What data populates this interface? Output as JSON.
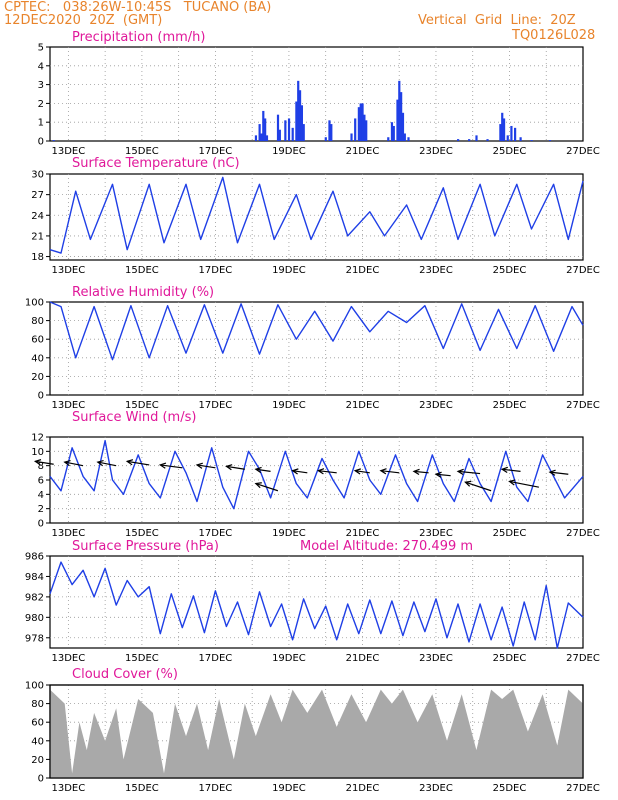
{
  "header": {
    "station": "CPTEC:   038:26W-10:45S   TUCANO (BA)",
    "datetime": "12DEC2020  20Z  (GMT)",
    "grid_note": "Vertical  Grid  Line:  20Z",
    "code": "TQ0126L028"
  },
  "colors": {
    "line": "#1f3fe6",
    "bar": "#1f3fe6",
    "cloud": "#a9a9a9",
    "title": "#e0189a",
    "header": "#e8842c"
  },
  "chart_data": [
    {
      "id": "precip",
      "type": "bar",
      "title": "Precipitation  (mm/h)",
      "ylim": [
        0,
        5
      ],
      "yticks": [
        0,
        1,
        2,
        3,
        4,
        5
      ],
      "x_date_labels": [
        "13DEC",
        "15DEC",
        "17DEC",
        "19DEC",
        "21DEC",
        "23DEC",
        "25DEC",
        "27DEC"
      ],
      "bars": [
        [
          0.1,
          0.05
        ],
        [
          5.6,
          0.3
        ],
        [
          5.7,
          0.9
        ],
        [
          5.75,
          0.4
        ],
        [
          5.8,
          1.6
        ],
        [
          5.85,
          1.2
        ],
        [
          5.9,
          0.3
        ],
        [
          6.2,
          1.4
        ],
        [
          6.25,
          0.6
        ],
        [
          6.4,
          1.1
        ],
        [
          6.5,
          1.2
        ],
        [
          6.6,
          0.7
        ],
        [
          6.7,
          2.1
        ],
        [
          6.75,
          3.2
        ],
        [
          6.8,
          2.7
        ],
        [
          6.85,
          1.9
        ],
        [
          6.9,
          0.9
        ],
        [
          7.5,
          0.2
        ],
        [
          7.6,
          1.1
        ],
        [
          7.65,
          0.9
        ],
        [
          8.2,
          0.4
        ],
        [
          8.3,
          1.2
        ],
        [
          8.4,
          1.8
        ],
        [
          8.45,
          2.0
        ],
        [
          8.5,
          2.0
        ],
        [
          8.55,
          1.4
        ],
        [
          8.6,
          1.1
        ],
        [
          9.2,
          0.2
        ],
        [
          9.3,
          1.0
        ],
        [
          9.35,
          0.8
        ],
        [
          9.45,
          2.2
        ],
        [
          9.5,
          3.2
        ],
        [
          9.55,
          2.6
        ],
        [
          9.6,
          1.5
        ],
        [
          9.65,
          0.4
        ],
        [
          9.75,
          0.2
        ],
        [
          11.1,
          0.1
        ],
        [
          11.4,
          0.1
        ],
        [
          11.6,
          0.3
        ],
        [
          11.9,
          0.1
        ],
        [
          12.25,
          0.9
        ],
        [
          12.3,
          1.5
        ],
        [
          12.35,
          1.2
        ],
        [
          12.45,
          0.3
        ],
        [
          12.55,
          0.8
        ],
        [
          12.65,
          0.7
        ],
        [
          12.8,
          0.2
        ],
        [
          13.1,
          0.05
        ],
        [
          13.6,
          0.05
        ]
      ]
    },
    {
      "id": "temp",
      "type": "line",
      "title": "Surface Temperature  (nC)",
      "ylim": [
        17.5,
        30
      ],
      "yticks": [
        18,
        21,
        24,
        27,
        30
      ],
      "x_date_labels": [
        "13DEC",
        "15DEC",
        "17DEC",
        "19DEC",
        "21DEC",
        "23DEC",
        "25DEC",
        "27DEC"
      ],
      "x": [
        0,
        0.3,
        0.7,
        1.1,
        1.7,
        2.1,
        2.7,
        3.1,
        3.7,
        4.1,
        4.7,
        5.1,
        5.7,
        6.1,
        6.7,
        7.1,
        7.7,
        8.1,
        8.7,
        9.1,
        9.7,
        10.1,
        10.7,
        11.1,
        11.7,
        12.1,
        12.7,
        13.1,
        13.7,
        14.1,
        14.5
      ],
      "y": [
        19.0,
        18.5,
        27.5,
        20.5,
        28.5,
        19.0,
        28.5,
        20.0,
        28.5,
        20.5,
        29.5,
        20.0,
        28.5,
        20.5,
        27.0,
        20.5,
        27.5,
        21.0,
        24.5,
        21.0,
        25.5,
        20.5,
        28.0,
        20.5,
        28.5,
        21.0,
        28.5,
        22.0,
        28.5,
        20.5,
        29.0
      ]
    },
    {
      "id": "rh",
      "type": "line",
      "title": "Relative Humidity  (%)",
      "ylim": [
        0,
        100
      ],
      "yticks": [
        0,
        20,
        40,
        60,
        80,
        100
      ],
      "x_date_labels": [
        "13DEC",
        "15DEC",
        "17DEC",
        "19DEC",
        "21DEC",
        "23DEC",
        "25DEC",
        "27DEC"
      ],
      "x": [
        0,
        0.3,
        0.7,
        1.2,
        1.7,
        2.2,
        2.7,
        3.2,
        3.7,
        4.2,
        4.7,
        5.2,
        5.7,
        6.2,
        6.7,
        7.2,
        7.7,
        8.2,
        8.7,
        9.2,
        9.7,
        10.2,
        10.7,
        11.2,
        11.7,
        12.2,
        12.7,
        13.2,
        13.7,
        14.2,
        14.5
      ],
      "y": [
        100,
        95,
        40,
        95,
        38,
        96,
        40,
        96,
        45,
        97,
        45,
        98,
        44,
        97,
        60,
        90,
        58,
        95,
        68,
        90,
        78,
        96,
        50,
        98,
        48,
        92,
        50,
        96,
        47,
        95,
        75
      ]
    },
    {
      "id": "wind",
      "type": "line",
      "title": "Surface Wind  (m/s)",
      "ylim": [
        0,
        12
      ],
      "yticks": [
        0,
        2,
        4,
        6,
        8,
        10,
        12
      ],
      "x_date_labels": [
        "13DEC",
        "15DEC",
        "17DEC",
        "19DEC",
        "21DEC",
        "23DEC",
        "25DEC",
        "27DEC"
      ],
      "x": [
        0,
        0.3,
        0.6,
        0.9,
        1.2,
        1.5,
        1.7,
        2.0,
        2.4,
        2.7,
        3.0,
        3.4,
        3.7,
        4.0,
        4.4,
        4.7,
        5.0,
        5.4,
        5.7,
        6.0,
        6.4,
        6.7,
        7.0,
        7.4,
        7.7,
        8.0,
        8.4,
        8.7,
        9.0,
        9.4,
        9.7,
        10.0,
        10.4,
        10.7,
        11.0,
        11.4,
        11.7,
        12.0,
        12.4,
        12.7,
        13.0,
        13.4,
        13.7,
        14.0,
        14.5
      ],
      "y": [
        6.5,
        4.5,
        10.5,
        6.5,
        4.5,
        11.5,
        6.0,
        4.0,
        9.5,
        5.5,
        3.5,
        10.0,
        7.0,
        3.0,
        10.5,
        5.0,
        2.0,
        10.0,
        7.5,
        3.5,
        10.0,
        5.5,
        3.5,
        9.0,
        6.0,
        3.5,
        10.0,
        6.0,
        4.0,
        9.5,
        5.5,
        3.0,
        9.5,
        5.5,
        3.0,
        9.0,
        5.5,
        3.0,
        10.0,
        5.0,
        3.0,
        9.5,
        6.5,
        3.5,
        6.5
      ],
      "arrows": [
        [
          0.1,
          8.2,
          -0.5,
          0.4
        ],
        [
          0.9,
          8.0,
          -0.5,
          0.5
        ],
        [
          1.8,
          8.0,
          -0.5,
          0.5
        ],
        [
          2.7,
          8.1,
          -0.6,
          0.5
        ],
        [
          3.6,
          7.7,
          -0.6,
          0.4
        ],
        [
          4.5,
          7.7,
          -0.5,
          0.4
        ],
        [
          5.3,
          7.5,
          -0.5,
          0.4
        ],
        [
          6.0,
          7.2,
          -0.4,
          0.3
        ],
        [
          6.2,
          4.5,
          -0.6,
          1.0
        ],
        [
          7.0,
          7.0,
          -0.4,
          0.3
        ],
        [
          7.8,
          7.0,
          -0.5,
          0.3
        ],
        [
          8.7,
          7.0,
          -0.4,
          0.3
        ],
        [
          9.5,
          7.0,
          -0.5,
          0.3
        ],
        [
          10.3,
          7.0,
          -0.4,
          0.2
        ],
        [
          10.9,
          6.6,
          -0.4,
          0.2
        ],
        [
          11.7,
          6.9,
          -0.6,
          0.3
        ],
        [
          12.0,
          4.5,
          -0.7,
          1.2
        ],
        [
          12.8,
          7.2,
          -0.5,
          0.3
        ],
        [
          13.3,
          5.0,
          -0.8,
          0.8
        ],
        [
          14.1,
          6.8,
          -0.5,
          0.3
        ]
      ]
    },
    {
      "id": "pres",
      "type": "line",
      "title": "Surface Pressure  (hPa)",
      "subtitle": "Model Altitude:  270.499  m",
      "ylim": [
        977,
        986
      ],
      "yticks": [
        978,
        980,
        982,
        984,
        986
      ],
      "x_date_labels": [
        "13DEC",
        "15DEC",
        "17DEC",
        "19DEC",
        "21DEC",
        "23DEC",
        "25DEC",
        "27DEC"
      ],
      "x": [
        0,
        0.3,
        0.6,
        0.9,
        1.2,
        1.5,
        1.8,
        2.1,
        2.4,
        2.7,
        3.0,
        3.3,
        3.6,
        3.9,
        4.2,
        4.5,
        4.8,
        5.1,
        5.4,
        5.7,
        6.0,
        6.3,
        6.6,
        6.9,
        7.2,
        7.5,
        7.8,
        8.1,
        8.4,
        8.7,
        9.0,
        9.3,
        9.6,
        9.9,
        10.2,
        10.5,
        10.8,
        11.1,
        11.4,
        11.7,
        12.0,
        12.3,
        12.6,
        12.9,
        13.2,
        13.5,
        13.8,
        14.1,
        14.5
      ],
      "y": [
        982.3,
        985.4,
        983.2,
        984.6,
        982.0,
        984.8,
        981.2,
        983.6,
        982.0,
        983.0,
        978.4,
        982.3,
        979.0,
        982.1,
        978.5,
        982.6,
        979.1,
        981.5,
        978.3,
        982.5,
        979.1,
        981.3,
        977.8,
        981.8,
        978.9,
        981.1,
        977.8,
        981.3,
        978.4,
        981.7,
        978.4,
        981.6,
        978.2,
        981.5,
        978.6,
        981.8,
        978.0,
        981.3,
        977.6,
        981.3,
        977.8,
        981.0,
        977.2,
        981.5,
        977.8,
        983.1,
        977.0,
        981.4,
        980.0
      ]
    },
    {
      "id": "cloud",
      "type": "area",
      "title": "Cloud Cover  (%)",
      "ylim": [
        0,
        100
      ],
      "yticks": [
        0,
        20,
        40,
        60,
        80,
        100
      ],
      "x_date_labels": [
        "13DEC",
        "15DEC",
        "17DEC",
        "19DEC",
        "21DEC",
        "23DEC",
        "25DEC",
        "27DEC"
      ],
      "x": [
        0,
        0.4,
        0.6,
        0.8,
        1.0,
        1.2,
        1.5,
        1.8,
        2.0,
        2.4,
        2.8,
        3.1,
        3.4,
        3.7,
        4.0,
        4.3,
        4.6,
        5.0,
        5.3,
        5.6,
        6.0,
        6.3,
        6.6,
        7.0,
        7.4,
        7.8,
        8.2,
        8.6,
        9.0,
        9.3,
        9.6,
        10.0,
        10.4,
        10.8,
        11.2,
        11.6,
        12.0,
        12.3,
        12.6,
        13.0,
        13.4,
        13.8,
        14.1,
        14.5
      ],
      "y": [
        95,
        80,
        5,
        60,
        30,
        70,
        40,
        75,
        20,
        85,
        70,
        5,
        80,
        45,
        80,
        30,
        85,
        20,
        80,
        45,
        90,
        60,
        95,
        70,
        95,
        55,
        90,
        60,
        95,
        80,
        95,
        60,
        90,
        40,
        90,
        30,
        95,
        85,
        95,
        50,
        90,
        35,
        95,
        80
      ]
    }
  ]
}
